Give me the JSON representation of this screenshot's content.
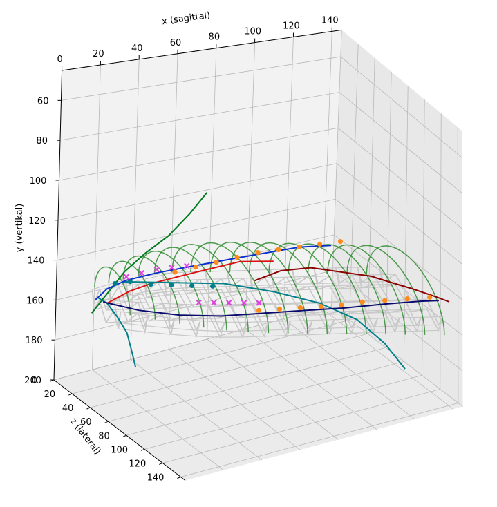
{
  "chart_data": {
    "type": "scatter",
    "projection": "3d",
    "title": "",
    "xlabel": "x (sagittal)",
    "ylabel": "y (vertikal)",
    "zlabel": "z (lateral)",
    "x_ticks": [
      "0",
      "20",
      "40",
      "60",
      "80",
      "100",
      "120",
      "140"
    ],
    "y_ticks": [
      "60",
      "80",
      "100",
      "120",
      "140",
      "160",
      "180",
      "200"
    ],
    "z_ticks": [
      "0",
      "20",
      "40",
      "60",
      "80",
      "100",
      "120",
      "140"
    ],
    "xlim": [
      0,
      145
    ],
    "ylim": [
      200,
      45
    ],
    "zlim": [
      0,
      145
    ],
    "y_axis_inverted": true,
    "grid": true,
    "colors": {
      "wireframe": "#c8c8c8",
      "arches": "#2e8b2e",
      "dark_red": "#8b0000",
      "red": "#dd1111",
      "green": "#007a1f",
      "teal": "#00808a",
      "blue": "#0a2fd1",
      "navy": "#0a0a6e",
      "orange_markers": "#ff8c1a",
      "magenta_markers": "#e040e0",
      "teal_markers": "#00808a"
    },
    "series": [
      {
        "kind": "line",
        "color": "#8b0000",
        "points": [
          [
            70,
            140,
            72
          ],
          [
            80,
            134,
            80
          ],
          [
            92,
            132,
            88
          ],
          [
            104,
            134,
            96
          ],
          [
            116,
            136,
            104
          ],
          [
            124,
            139,
            110
          ],
          [
            132,
            142,
            116
          ],
          [
            140,
            145,
            124
          ],
          [
            145,
            147,
            130
          ]
        ]
      },
      {
        "kind": "line",
        "color": "#dd1111",
        "points": [
          [
            24,
            165,
            6
          ],
          [
            30,
            156,
            18
          ],
          [
            36,
            150,
            28
          ],
          [
            44,
            144,
            40
          ],
          [
            54,
            138,
            52
          ],
          [
            66,
            132,
            64
          ],
          [
            78,
            130,
            76
          ]
        ]
      },
      {
        "kind": "line",
        "color": "#007a1f",
        "points": [
          [
            18,
            170,
            2
          ],
          [
            24,
            160,
            6
          ],
          [
            30,
            148,
            12
          ],
          [
            38,
            138,
            18
          ],
          [
            46,
            128,
            26
          ],
          [
            54,
            116,
            32
          ],
          [
            60,
            104,
            38
          ]
        ]
      },
      {
        "kind": "line",
        "color": "#00808a",
        "points": [
          [
            18,
            160,
            8
          ],
          [
            24,
            165,
            6
          ],
          [
            28,
            172,
            10
          ],
          [
            32,
            180,
            12
          ],
          [
            34,
            190,
            14
          ],
          [
            36,
            198,
            14
          ]
        ]
      },
      {
        "kind": "line",
        "color": "#00808a",
        "points": [
          [
            30,
            154,
            10
          ],
          [
            50,
            154,
            24
          ],
          [
            70,
            154,
            38
          ],
          [
            90,
            158,
            52
          ],
          [
            108,
            164,
            64
          ],
          [
            122,
            172,
            76
          ],
          [
            132,
            184,
            86
          ],
          [
            138,
            196,
            96
          ]
        ]
      },
      {
        "kind": "line",
        "color": "#0a2fd1",
        "points": [
          [
            16,
            160,
            10
          ],
          [
            20,
            154,
            14
          ],
          [
            28,
            150,
            18
          ],
          [
            40,
            146,
            26
          ],
          [
            54,
            142,
            36
          ],
          [
            68,
            138,
            46
          ],
          [
            82,
            134,
            56
          ],
          [
            96,
            130,
            66
          ],
          [
            108,
            128,
            76
          ]
        ]
      },
      {
        "kind": "line",
        "color": "#0a0a6e",
        "points": [
          [
            20,
            162,
            10
          ],
          [
            34,
            166,
            20
          ],
          [
            50,
            168,
            32
          ],
          [
            66,
            168,
            44
          ],
          [
            82,
            166,
            56
          ],
          [
            98,
            164,
            68
          ],
          [
            114,
            162,
            80
          ],
          [
            128,
            158,
            94
          ],
          [
            140,
            154,
            108
          ],
          [
            146,
            152,
            116
          ]
        ]
      },
      {
        "kind": "markers",
        "marker": "circle",
        "color": "#ff8c1a",
        "points": [
          [
            46,
            144,
            34
          ],
          [
            54,
            141,
            40
          ],
          [
            62,
            138,
            46
          ],
          [
            70,
            135,
            52
          ],
          [
            78,
            132,
            58
          ],
          [
            86,
            130,
            64
          ],
          [
            94,
            128,
            70
          ],
          [
            102,
            126,
            76
          ],
          [
            110,
            124,
            82
          ]
        ]
      },
      {
        "kind": "markers",
        "marker": "circle",
        "color": "#ff8c1a",
        "points": [
          [
            80,
            164,
            56
          ],
          [
            88,
            163,
            62
          ],
          [
            96,
            162,
            68
          ],
          [
            104,
            161,
            74
          ],
          [
            112,
            160,
            80
          ],
          [
            120,
            158,
            86
          ],
          [
            128,
            156,
            94
          ],
          [
            136,
            154,
            102
          ],
          [
            144,
            152,
            110
          ]
        ]
      },
      {
        "kind": "markers",
        "marker": "x",
        "color": "#e040e0",
        "points": [
          [
            30,
            150,
            14
          ],
          [
            36,
            148,
            18
          ],
          [
            42,
            146,
            22
          ],
          [
            48,
            145,
            26
          ],
          [
            54,
            144,
            30
          ]
        ]
      },
      {
        "kind": "markers",
        "marker": "x",
        "color": "#e040e0",
        "points": [
          [
            56,
            160,
            40
          ],
          [
            62,
            160,
            44
          ],
          [
            68,
            160,
            48
          ],
          [
            74,
            160,
            52
          ],
          [
            80,
            160,
            56
          ]
        ]
      },
      {
        "kind": "markers",
        "marker": "circle",
        "color": "#00808a",
        "points": [
          [
            26,
            154,
            10
          ],
          [
            32,
            153,
            14
          ],
          [
            40,
            154,
            20
          ],
          [
            48,
            154,
            26
          ],
          [
            56,
            154,
            32
          ],
          [
            64,
            154,
            38
          ]
        ]
      }
    ],
    "arches": {
      "count": 16,
      "color": "#2e8b2e"
    },
    "wireframe": {
      "color": "#c8c8c8"
    }
  }
}
